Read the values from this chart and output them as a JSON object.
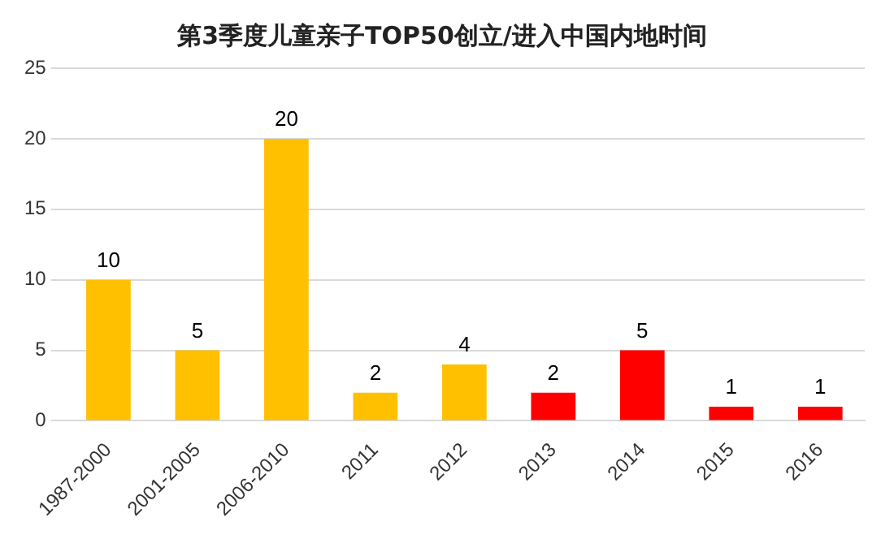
{
  "chart_data": {
    "type": "bar",
    "title": "第3季度儿童亲子TOP50创立/进入中国内地时间",
    "categories": [
      "1987-2000",
      "2001-2005",
      "2006-2010",
      "2011",
      "2012",
      "2013",
      "2014",
      "2015",
      "2016"
    ],
    "values": [
      10,
      5,
      20,
      2,
      4,
      2,
      5,
      1,
      1
    ],
    "colors": [
      "#ffc000",
      "#ffc000",
      "#ffc000",
      "#ffc000",
      "#ffc000",
      "#ff0000",
      "#ff0000",
      "#ff0000",
      "#ff0000"
    ],
    "ylim": [
      0,
      25
    ],
    "yticks": [
      0,
      5,
      10,
      15,
      20,
      25
    ],
    "grid": "y",
    "data_labels": true
  }
}
